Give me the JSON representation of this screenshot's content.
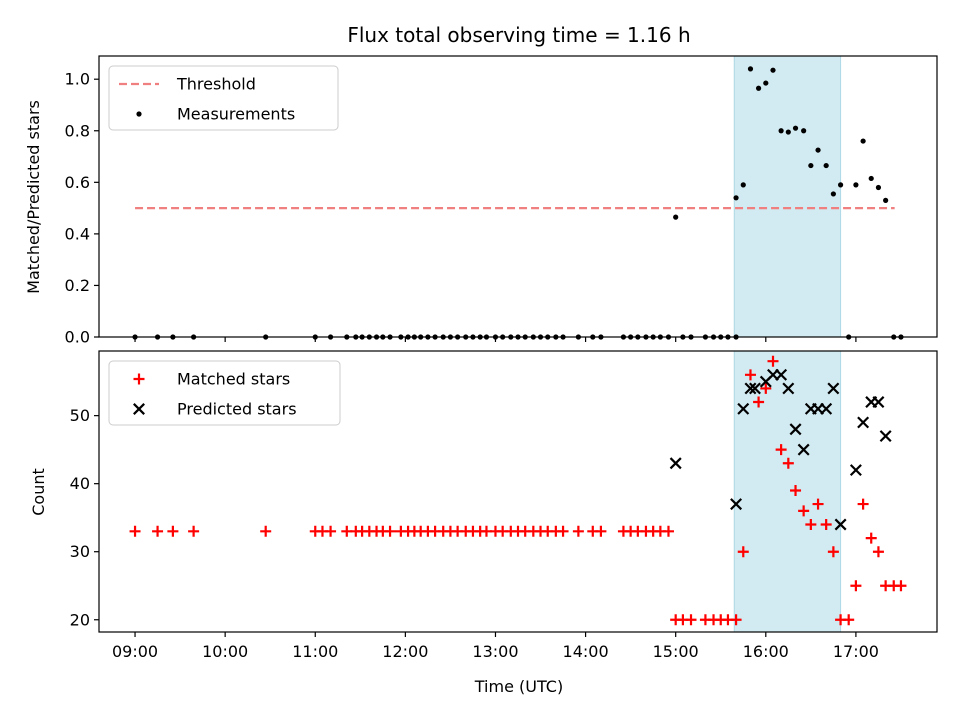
{
  "chart_data": {
    "type": "scatter",
    "title": "Flux total observing time = 1.16 h",
    "xlabel": "Time (UTC)",
    "x_ticks": [
      "09:00",
      "10:00",
      "11:00",
      "12:00",
      "13:00",
      "14:00",
      "15:00",
      "16:00",
      "17:00"
    ],
    "xlim_hours": [
      8.6,
      17.9
    ],
    "highlight_span_hours": [
      15.65,
      16.83
    ],
    "colors": {
      "threshold": "#f08080",
      "span": "#add8e6",
      "matched": "#ff0000",
      "predicted": "#000000",
      "measurements": "#000000"
    },
    "panels": [
      {
        "ylabel": "Matched/Predicted stars",
        "ylim": [
          0,
          1.09
        ],
        "y_ticks": [
          "0.0",
          "0.2",
          "0.4",
          "0.6",
          "0.8",
          "1.0"
        ],
        "legend": {
          "position": "upper-left",
          "entries": [
            "Threshold",
            "Measurements"
          ]
        },
        "threshold": {
          "name": "Threshold",
          "value": 0.5,
          "x_from": 9.0,
          "x_to": 17.43
        },
        "series": [
          {
            "name": "Measurements",
            "marker": "dot",
            "x": [
              9.0,
              9.25,
              9.42,
              9.65,
              10.45,
              11.0,
              11.17,
              11.35,
              11.45,
              11.52,
              11.6,
              11.68,
              11.75,
              11.83,
              11.95,
              12.03,
              12.1,
              12.17,
              12.25,
              12.33,
              12.42,
              12.5,
              12.58,
              12.67,
              12.75,
              12.83,
              12.9,
              13.0,
              13.08,
              13.17,
              13.25,
              13.33,
              13.42,
              13.5,
              13.58,
              13.67,
              13.75,
              13.92,
              14.08,
              14.17,
              14.42,
              14.5,
              14.58,
              14.67,
              14.75,
              14.83,
              14.92,
              15.0,
              15.08,
              15.17,
              15.33,
              15.42,
              15.5,
              15.58,
              15.67,
              15.67,
              15.75,
              15.83,
              15.92,
              16.0,
              16.08,
              16.17,
              16.25,
              16.33,
              16.42,
              16.5,
              16.58,
              16.67,
              16.75,
              16.83,
              16.92,
              17.0,
              17.08,
              17.17,
              17.25,
              17.33,
              17.42,
              17.5
            ],
            "y": [
              0,
              0,
              0,
              0,
              0,
              0,
              0,
              0,
              0,
              0,
              0,
              0,
              0,
              0,
              0,
              0,
              0,
              0,
              0,
              0,
              0,
              0,
              0,
              0,
              0,
              0,
              0,
              0,
              0,
              0,
              0,
              0,
              0,
              0,
              0,
              0,
              0,
              0,
              0,
              0,
              0,
              0,
              0,
              0,
              0,
              0,
              0,
              0.465,
              0,
              0,
              0,
              0,
              0,
              0,
              0,
              0.54,
              0.59,
              1.04,
              0.965,
              0.985,
              1.035,
              0.8,
              0.795,
              0.81,
              0.8,
              0.665,
              0.725,
              0.665,
              0.555,
              0.59,
              0,
              0.59,
              0.76,
              0.615,
              0.58,
              0.53,
              0,
              0
            ]
          }
        ]
      },
      {
        "ylabel": "Count",
        "ylim": [
          18.2,
          59.5
        ],
        "y_ticks": [
          "20",
          "30",
          "40",
          "50"
        ],
        "legend": {
          "position": "upper-left",
          "entries": [
            "Matched stars",
            "Predicted stars"
          ]
        },
        "series": [
          {
            "name": "Matched stars",
            "marker": "plus",
            "x": [
              9.0,
              9.25,
              9.42,
              9.65,
              10.45,
              11.0,
              11.08,
              11.17,
              11.35,
              11.45,
              11.52,
              11.6,
              11.68,
              11.75,
              11.83,
              11.95,
              12.03,
              12.1,
              12.17,
              12.25,
              12.33,
              12.42,
              12.5,
              12.58,
              12.67,
              12.75,
              12.83,
              12.9,
              13.0,
              13.08,
              13.17,
              13.25,
              13.33,
              13.42,
              13.5,
              13.58,
              13.67,
              13.75,
              13.92,
              14.08,
              14.17,
              14.42,
              14.5,
              14.58,
              14.67,
              14.75,
              14.83,
              14.92,
              15.0,
              15.08,
              15.17,
              15.33,
              15.42,
              15.5,
              15.58,
              15.67,
              15.75,
              15.83,
              15.92,
              16.0,
              16.08,
              16.17,
              16.25,
              16.33,
              16.42,
              16.5,
              16.58,
              16.67,
              16.75,
              16.83,
              16.92,
              17.0,
              17.08,
              17.17,
              17.25,
              17.33,
              17.42,
              17.5
            ],
            "y": [
              33,
              33,
              33,
              33,
              33,
              33,
              33,
              33,
              33,
              33,
              33,
              33,
              33,
              33,
              33,
              33,
              33,
              33,
              33,
              33,
              33,
              33,
              33,
              33,
              33,
              33,
              33,
              33,
              33,
              33,
              33,
              33,
              33,
              33,
              33,
              33,
              33,
              33,
              33,
              33,
              33,
              33,
              33,
              33,
              33,
              33,
              33,
              33,
              20,
              20,
              20,
              20,
              20,
              20,
              20,
              20,
              30,
              56,
              52,
              54,
              58,
              45,
              43,
              39,
              36,
              34,
              37,
              34,
              30,
              20,
              20,
              25,
              37,
              32,
              30,
              25,
              25,
              25
            ]
          },
          {
            "name": "Predicted stars",
            "marker": "x",
            "x": [
              15.0,
              15.67,
              15.75,
              15.83,
              15.88,
              16.0,
              16.08,
              16.17,
              16.25,
              16.33,
              16.42,
              16.5,
              16.58,
              16.67,
              16.75,
              16.83,
              17.0,
              17.08,
              17.17,
              17.25,
              17.33
            ],
            "y": [
              43,
              37,
              51,
              54,
              54,
              55,
              56,
              56,
              54,
              48,
              45,
              51,
              51,
              51,
              54,
              34,
              42,
              49,
              52,
              52,
              47
            ]
          }
        ]
      }
    ]
  }
}
